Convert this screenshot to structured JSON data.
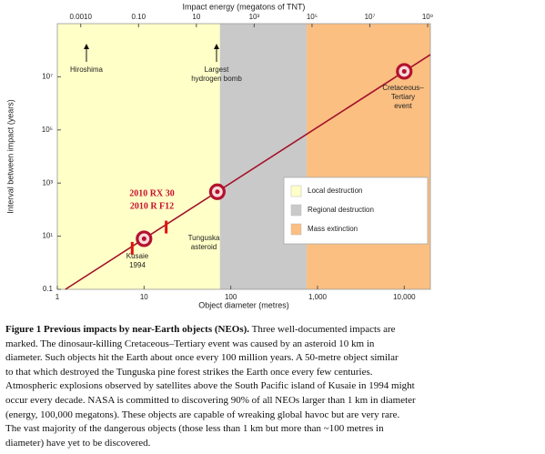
{
  "chart_data": {
    "type": "line",
    "x2label": "Impact energy (megatons of TNT)",
    "xlabel": "Object diameter (metres)",
    "ylabel": "Interval between impact (years)",
    "xscale": "log",
    "yscale": "log",
    "xlim": [
      1,
      20000
    ],
    "ylim": [
      0.1,
      1000000000
    ],
    "x2lim": [
      0.000155,
      1240000000
    ],
    "xticks": [
      1,
      10,
      100,
      {
        "value": 1000,
        "label": "1,000"
      },
      {
        "value": 10000,
        "label": "10,000"
      }
    ],
    "yticks": [
      0.1,
      {
        "value": 10,
        "label": "10¹"
      },
      {
        "value": 1000,
        "label": "10³"
      },
      {
        "value": 100000,
        "label": "10⁵"
      },
      {
        "value": 10000000,
        "label": "10⁷"
      }
    ],
    "x2ticks": [
      {
        "value": 0.001,
        "label": "0.0010"
      },
      {
        "value": 0.1,
        "label": "0.10"
      },
      10,
      {
        "value": 1000,
        "label": "10³"
      },
      {
        "value": 100000,
        "label": "10⁵"
      },
      {
        "value": 10000000,
        "label": "10⁷"
      },
      {
        "value": 1000000000,
        "label": "10⁹"
      }
    ],
    "regions": [
      {
        "name": "Local destruction",
        "color": "#ffffc8",
        "x": [
          1,
          75
        ]
      },
      {
        "name": "Regional destruction",
        "color": "#c9c9c9",
        "x": [
          75,
          750
        ]
      },
      {
        "name": "Mass extinction",
        "color": "#fbbf82",
        "x": [
          750,
          20000
        ]
      }
    ],
    "series": [
      {
        "color": "#a3122a",
        "x": [
          1.24,
          20000
        ],
        "values": [
          0.1,
          68000000
        ]
      }
    ],
    "events": {
      "color": "#b3122e",
      "x": [
        10,
        70,
        10000
      ],
      "y": [
        8,
        470,
        16000000
      ]
    },
    "markers": {
      "color": "#e01010",
      "x": [
        7.3,
        18
      ],
      "y": [
        3.5,
        22
      ]
    },
    "annotations": [
      [
        "Hiroshima"
      ],
      [
        "Largest",
        "hydrogen bomb"
      ],
      [
        "Cretaceous–",
        "Tertiary",
        "event"
      ],
      [
        "Tunguska",
        "asteroid"
      ],
      [
        "Kusaie",
        "1994"
      ],
      [
        "2010 RX 30"
      ],
      [
        "2010 R F12"
      ]
    ]
  },
  "caption": {
    "title": "Figure 1 Previous impacts by near-Earth objects (NEOs).",
    "lines": [
      " Three well-documented impacts are",
      "marked. The dinosaur-killing Cretaceous–Tertiary event was caused by an asteroid 10 km in",
      "diameter. Such objects hit the Earth about once every 100 million years. A 50-metre object similar",
      "to that which destroyed the Tunguska pine forest strikes the Earth once every few centuries.",
      "Atmospheric explosions observed by satellites above the South Pacific island of Kusaie in 1994 might",
      "occur every decade. NASA is committed to discovering 90% of all NEOs larger than 1 km in diameter",
      "(energy, 100,000 megatons). These objects are capable of wreaking global havoc but are very rare.",
      "The vast majority of the dangerous objects (those less than 1 km but more than ~100 metres in",
      "diameter) have yet to be discovered."
    ]
  }
}
